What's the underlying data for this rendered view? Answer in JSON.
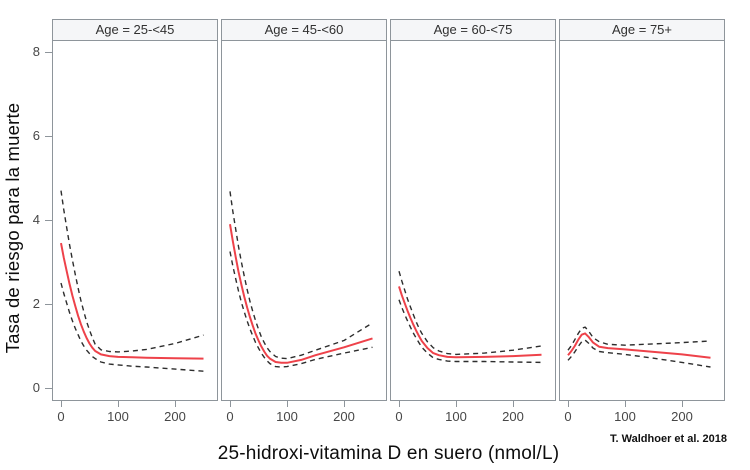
{
  "figure": {
    "ylabel": "Tasa de riesgo para la muerte",
    "xlabel": "25-hidroxi-vitamina D en suero (nmol/L)",
    "citation": "T. Waldhoer et al. 2018"
  },
  "chart_data": {
    "type": "line",
    "layout": "4 faceted panels in a row sharing one y axis; solid red estimate line with black dashed upper/lower confidence limits in each panel",
    "title": "",
    "xlabel": "25-hidroxi-vitamina D en suero (nmol/L)",
    "ylabel": "Tasa de riesgo para la muerte",
    "citation": "T. Waldhoer et al. 2018",
    "x_ticks": [
      0,
      100,
      200
    ],
    "y_ticks": [
      0,
      2,
      4,
      6,
      8
    ],
    "xlim": [
      0,
      250
    ],
    "ylim": [
      0,
      8.3
    ],
    "grid": false,
    "legend": "none",
    "colors": {
      "estimate": "#ee424a",
      "confidence_band": "#2d2d2d",
      "panel_border": "#8e959b",
      "header_bg": "#f5f6f8"
    },
    "panels": [
      {
        "label": "Age = 25-<45",
        "x": [
          0,
          5,
          10,
          15,
          20,
          25,
          30,
          35,
          40,
          45,
          50,
          55,
          60,
          70,
          85,
          100,
          125,
          150,
          200,
          250
        ],
        "series": [
          {
            "name": "hazard-estimate",
            "style": "solid-red",
            "values": [
              3.45,
              3.1,
              2.78,
              2.48,
              2.2,
              1.95,
              1.72,
              1.52,
              1.34,
              1.19,
              1.06,
              0.96,
              0.88,
              0.8,
              0.76,
              0.74,
              0.73,
              0.72,
              0.71,
              0.7
            ]
          },
          {
            "name": "upper-confidence-limit",
            "style": "dashed-black",
            "values": [
              4.7,
              4.24,
              3.82,
              3.42,
              3.05,
              2.7,
              2.38,
              2.08,
              1.82,
              1.58,
              1.38,
              1.2,
              1.04,
              0.91,
              0.87,
              0.86,
              0.88,
              0.92,
              1.06,
              1.26
            ]
          },
          {
            "name": "lower-confidence-limit",
            "style": "dashed-black",
            "values": [
              2.5,
              2.25,
              2.02,
              1.8,
              1.6,
              1.42,
              1.27,
              1.12,
              1.0,
              0.9,
              0.82,
              0.75,
              0.7,
              0.62,
              0.57,
              0.55,
              0.52,
              0.5,
              0.45,
              0.4
            ]
          }
        ]
      },
      {
        "label": "Age = 45-<60",
        "x": [
          0,
          5,
          10,
          15,
          20,
          25,
          30,
          35,
          40,
          45,
          50,
          55,
          60,
          65,
          70,
          80,
          90,
          100,
          125,
          150,
          200,
          250
        ],
        "series": [
          {
            "name": "hazard-estimate",
            "style": "solid-red",
            "values": [
              3.9,
              3.5,
              3.12,
              2.77,
              2.46,
              2.17,
              1.92,
              1.69,
              1.48,
              1.29,
              1.13,
              0.99,
              0.87,
              0.77,
              0.7,
              0.62,
              0.6,
              0.6,
              0.67,
              0.78,
              0.97,
              1.18
            ]
          },
          {
            "name": "upper-confidence-limit",
            "style": "dashed-black",
            "values": [
              4.68,
              4.21,
              3.78,
              3.37,
              3.0,
              2.66,
              2.35,
              2.07,
              1.82,
              1.6,
              1.4,
              1.22,
              1.08,
              0.96,
              0.87,
              0.75,
              0.71,
              0.7,
              0.78,
              0.9,
              1.13,
              1.55
            ]
          },
          {
            "name": "lower-confidence-limit",
            "style": "dashed-black",
            "values": [
              3.25,
              2.91,
              2.6,
              2.31,
              2.04,
              1.81,
              1.6,
              1.41,
              1.24,
              1.08,
              0.95,
              0.83,
              0.73,
              0.65,
              0.58,
              0.51,
              0.5,
              0.51,
              0.58,
              0.68,
              0.83,
              0.97
            ]
          }
        ]
      },
      {
        "label": "Age = 60-<75",
        "x": [
          0,
          5,
          10,
          15,
          20,
          25,
          30,
          35,
          40,
          50,
          60,
          70,
          85,
          100,
          150,
          200,
          250
        ],
        "series": [
          {
            "name": "hazard-estimate",
            "style": "solid-red",
            "values": [
              2.42,
              2.21,
              2.02,
              1.84,
              1.67,
              1.51,
              1.37,
              1.24,
              1.12,
              0.95,
              0.83,
              0.78,
              0.74,
              0.73,
              0.74,
              0.76,
              0.79
            ]
          },
          {
            "name": "upper-confidence-limit",
            "style": "dashed-black",
            "values": [
              2.78,
              2.55,
              2.33,
              2.12,
              1.93,
              1.75,
              1.58,
              1.43,
              1.3,
              1.1,
              0.96,
              0.88,
              0.82,
              0.8,
              0.83,
              0.9,
              1.0
            ]
          },
          {
            "name": "lower-confidence-limit",
            "style": "dashed-black",
            "values": [
              2.1,
              1.92,
              1.75,
              1.6,
              1.45,
              1.31,
              1.19,
              1.08,
              0.97,
              0.83,
              0.72,
              0.68,
              0.64,
              0.63,
              0.63,
              0.62,
              0.61
            ]
          }
        ]
      },
      {
        "label": "Age = 75+",
        "x": [
          0,
          6,
          12,
          18,
          24,
          30,
          36,
          44,
          55,
          70,
          100,
          150,
          200,
          250
        ],
        "series": [
          {
            "name": "hazard-estimate",
            "style": "solid-red",
            "values": [
              0.78,
              0.88,
              1.0,
              1.15,
              1.27,
              1.3,
              1.22,
              1.08,
              0.98,
              0.95,
              0.92,
              0.86,
              0.8,
              0.72
            ]
          },
          {
            "name": "upper-confidence-limit",
            "style": "dashed-black",
            "values": [
              0.9,
              1.01,
              1.15,
              1.3,
              1.42,
              1.45,
              1.36,
              1.2,
              1.1,
              1.04,
              1.02,
              1.05,
              1.08,
              1.12
            ]
          },
          {
            "name": "lower-confidence-limit",
            "style": "dashed-black",
            "values": [
              0.66,
              0.75,
              0.86,
              0.99,
              1.1,
              1.14,
              1.07,
              0.95,
              0.87,
              0.84,
              0.8,
              0.71,
              0.61,
              0.5
            ]
          }
        ]
      }
    ]
  }
}
